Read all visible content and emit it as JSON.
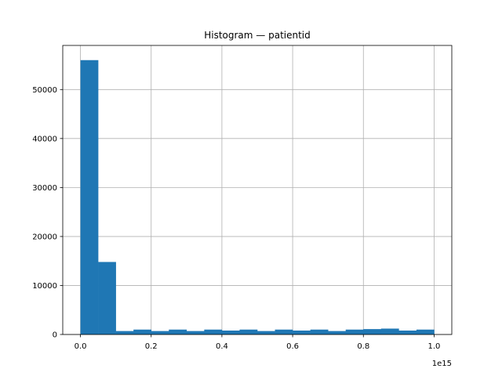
{
  "chart_data": {
    "type": "bar",
    "title": "Histogram — patientid",
    "xlabel": "",
    "ylabel": "",
    "x_offset_label": "1e15",
    "x_scale_exponent": 15,
    "xlim": [
      -0.05,
      1.05
    ],
    "ylim": [
      0,
      59000
    ],
    "x_ticks": [
      0.0,
      0.2,
      0.4,
      0.6,
      0.8,
      1.0
    ],
    "x_tick_labels": [
      "0.0",
      "0.2",
      "0.4",
      "0.6",
      "0.8",
      "1.0"
    ],
    "y_ticks": [
      0,
      10000,
      20000,
      30000,
      40000,
      50000
    ],
    "y_tick_labels": [
      "0",
      "10000",
      "20000",
      "30000",
      "40000",
      "50000"
    ],
    "grid": true,
    "bar_color": "#1f77b4",
    "bin_edges": [
      0.0,
      0.05,
      0.1,
      0.15,
      0.2,
      0.25,
      0.3,
      0.35,
      0.4,
      0.45,
      0.5,
      0.55,
      0.6,
      0.65,
      0.7,
      0.75,
      0.8,
      0.85,
      0.9,
      0.95,
      1.0
    ],
    "values": [
      56000,
      14800,
      700,
      1000,
      700,
      1000,
      700,
      1000,
      800,
      1000,
      700,
      1000,
      800,
      1000,
      700,
      1000,
      1100,
      1200,
      800,
      1000
    ]
  }
}
